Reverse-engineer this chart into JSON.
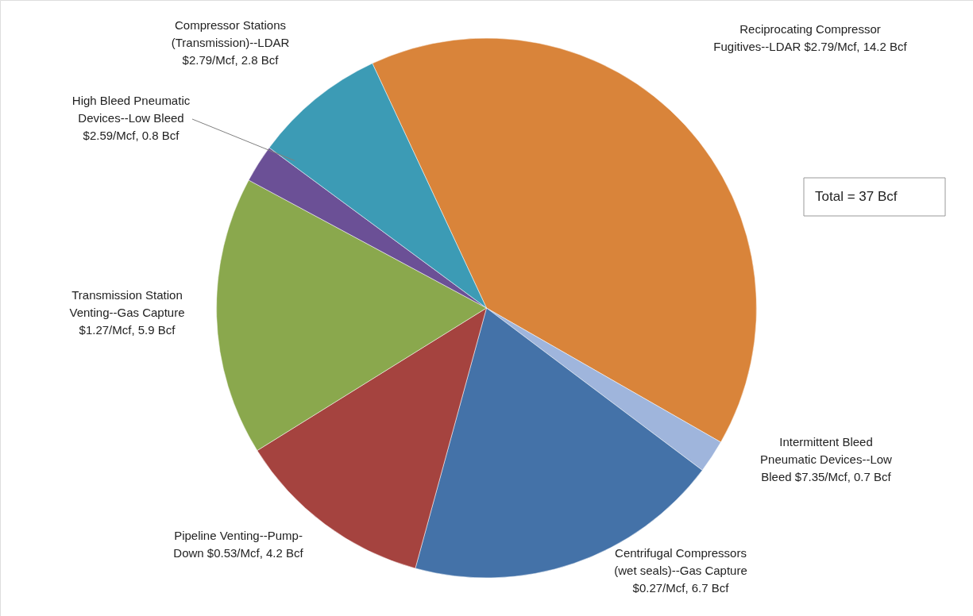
{
  "chart_data": {
    "type": "pie",
    "categories": [
      "Reciprocating Compressor\nFugitives--LDAR  $2.79/Mcf",
      "Intermittent Bleed\nPneumatic Devices--Low\nBleed  $7.35/Mcf",
      "Centrifugal Compressors\n(wet seals)--Gas Capture\n$0.27/Mcf",
      "Pipeline Venting--Pump-\nDown  $0.53/Mcf",
      "Transmission Station\nVenting--Gas Capture\n$1.27/Mcf",
      "High Bleed Pneumatic\nDevices--Low Bleed\n$2.59/Mcf",
      "Compressor Stations\n(Transmission)--LDAR\n$2.79/Mcf"
    ],
    "values": [
      14.2,
      0.7,
      6.7,
      4.2,
      5.9,
      0.8,
      2.8
    ],
    "value_labels": [
      "14.2 Bcf",
      "0.7 Bcf",
      "6.7 Bcf",
      "4.2 Bcf",
      "5.9 Bcf",
      "0.8 Bcf",
      "2.8 Bcf"
    ],
    "colors": [
      "#d9843a",
      "#9fb5dc",
      "#4472a8",
      "#a5433f",
      "#8aa84d",
      "#6b5096",
      "#3c9bb5"
    ],
    "annotations": [
      "Total = 37 Bcf"
    ]
  }
}
